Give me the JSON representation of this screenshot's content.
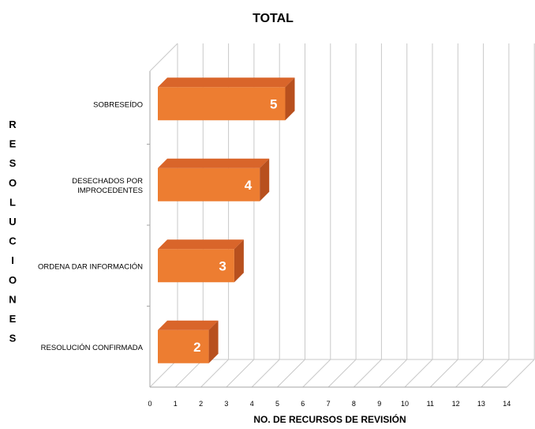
{
  "chart_data": {
    "type": "bar",
    "orientation": "horizontal",
    "title": "TOTAL",
    "xlabel": "NO. DE RECURSOS DE REVISIÓN",
    "ylabel": "RESOLUCIONES",
    "categories": [
      [
        "SOBRESEÍDO"
      ],
      [
        "DESECHADOS POR",
        "IMPROCEDENTES"
      ],
      [
        "ORDENA DAR INFORMACIÓN"
      ],
      [
        "RESOLUCIÓN CONFIRMADA"
      ]
    ],
    "values": [
      5,
      4,
      3,
      2
    ],
    "data_labels": [
      "5",
      "4",
      "3",
      "2"
    ],
    "xlim": [
      0,
      14
    ],
    "xticks": [
      "0",
      "1",
      "2",
      "3",
      "4",
      "5",
      "6",
      "7",
      "8",
      "9",
      "10",
      "11",
      "12",
      "13",
      "14"
    ],
    "grid": true,
    "legend": "none",
    "bar_color": "#ED7D31",
    "bar_top_color": "#D9652A",
    "bar_side_color": "#B8501E"
  }
}
